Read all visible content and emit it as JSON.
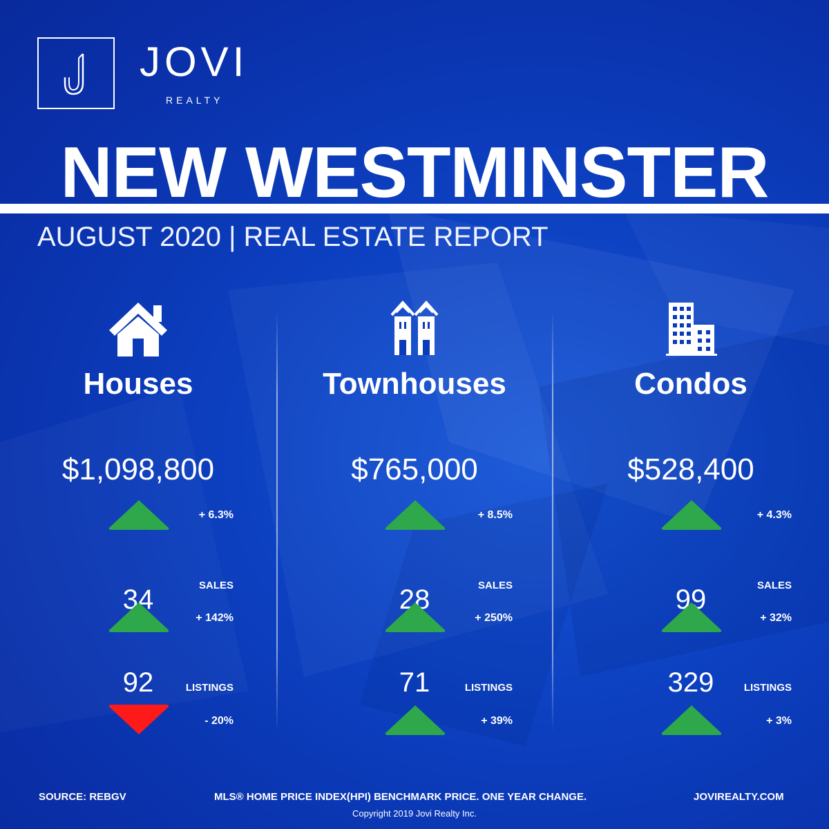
{
  "brand": {
    "name": "JOVI",
    "sub": "REALTY",
    "monogram": "J"
  },
  "title": "NEW WESTMINSTER",
  "subtitle": "AUGUST 2020 | REAL ESTATE REPORT",
  "colors": {
    "background": "#0b3bb8",
    "up": "#2ea84a",
    "down": "#ff1a1a",
    "text": "#ffffff"
  },
  "columns": [
    {
      "name": "Houses",
      "icon": "house-icon",
      "price": "$1,098,800",
      "price_change": "+ 6.3%",
      "price_dir": "up",
      "sales": "34",
      "sales_label": "SALES",
      "sales_change": "+ 142%",
      "sales_dir": "up",
      "listings": "92",
      "listings_label": "LISTINGS",
      "listings_change": "- 20%",
      "listings_dir": "down"
    },
    {
      "name": "Townhouses",
      "icon": "townhouse-icon",
      "price": "$765,000",
      "price_change": "+ 8.5%",
      "price_dir": "up",
      "sales": "28",
      "sales_label": "SALES",
      "sales_change": "+ 250%",
      "sales_dir": "up",
      "listings": "71",
      "listings_label": "LISTINGS",
      "listings_change": "+ 39%",
      "listings_dir": "up"
    },
    {
      "name": "Condos",
      "icon": "condo-icon",
      "price": "$528,400",
      "price_change": "+ 4.3%",
      "price_dir": "up",
      "sales": "99",
      "sales_label": "SALES",
      "sales_change": "+ 32%",
      "sales_dir": "up",
      "listings": "329",
      "listings_label": "LISTINGS",
      "listings_change": "+ 3%",
      "listings_dir": "up"
    }
  ],
  "footer": {
    "source": "SOURCE:  REBGV",
    "note": "MLS® HOME PRICE INDEX(HPI) BENCHMARK PRICE. ONE YEAR CHANGE.",
    "website": "JOVIREALTY.COM",
    "copyright": "Copyright 2019 Jovi Realty Inc."
  }
}
